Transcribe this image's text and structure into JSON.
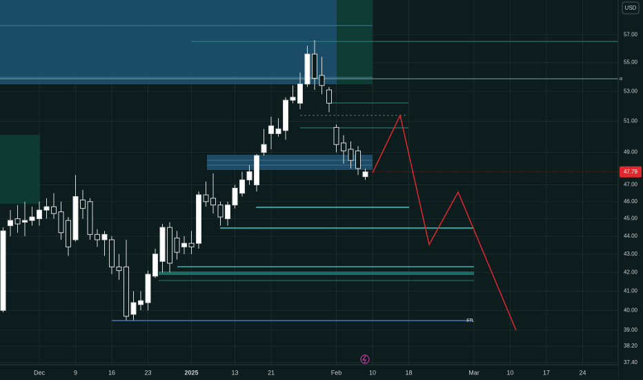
{
  "chart_data": {
    "type": "candlestick",
    "currency": "USD",
    "yscale": "log",
    "grid": true,
    "up_color": "#ffffff",
    "down_color": "#0d1c1c",
    "wick_color": "#d8dcdc",
    "last_price_color": "#e0282e",
    "ylim": [
      37.3,
      59.6
    ],
    "yticks": [
      {
        "value": 57,
        "label": "57.00"
      },
      {
        "value": 55,
        "label": "55.00"
      },
      {
        "value": 53,
        "label": "53.00"
      },
      {
        "value": 51,
        "label": "51.00"
      },
      {
        "value": 49,
        "label": "49.00"
      },
      {
        "value": 47,
        "label": "47.00"
      },
      {
        "value": 46,
        "label": "46.00"
      },
      {
        "value": 45,
        "label": "45.00"
      },
      {
        "value": 44,
        "label": "44.00"
      },
      {
        "value": 43,
        "label": "43.00"
      },
      {
        "value": 42,
        "label": "42.00"
      },
      {
        "value": 41,
        "label": "41.00"
      },
      {
        "value": 40,
        "label": "40.00"
      },
      {
        "value": 39,
        "label": "39.00"
      },
      {
        "value": 38.2,
        "label": "38.20"
      },
      {
        "value": 37.4,
        "label": "37.40"
      }
    ],
    "xlim": [
      -0.43,
      84.81
    ],
    "xticks": [
      {
        "value": 5,
        "label": "Dec"
      },
      {
        "value": 10,
        "label": "9"
      },
      {
        "value": 15,
        "label": "16"
      },
      {
        "value": 20,
        "label": "23"
      },
      {
        "value": 26,
        "label": "2025"
      },
      {
        "value": 32,
        "label": "13"
      },
      {
        "value": 37,
        "label": "21"
      },
      {
        "value": 46,
        "label": "Feb"
      },
      {
        "value": 51,
        "label": "10"
      },
      {
        "value": 56,
        "label": "18"
      },
      {
        "value": 65,
        "label": "Mar"
      },
      {
        "value": 70,
        "label": "10"
      },
      {
        "value": 75,
        "label": "17"
      },
      {
        "value": 80,
        "label": "24"
      }
    ],
    "open": [
      40.0,
      44.6,
      45.0,
      44.8,
      44.9,
      45.0,
      45.5,
      45.7,
      45.4,
      44.9,
      43.8,
      46.1,
      46.0,
      44.1,
      43.8,
      43.8,
      42.3,
      42.3,
      39.8,
      40.3,
      40.4,
      41.8,
      42.6,
      44.5,
      43.9,
      43.4,
      43.6,
      43.6,
      46.4,
      46.2,
      45.8,
      45.0,
      45.8,
      46.5,
      47.3,
      47.0,
      49.0,
      50.2,
      50.2,
      50.4,
      52.4,
      52.2,
      53.5,
      55.6,
      54.1,
      53.1,
      50.6,
      49.6,
      49.2,
      49.1,
      47.5
    ],
    "high": [
      44.5,
      45.5,
      45.8,
      46.0,
      45.7,
      46.0,
      46.2,
      46.5,
      46.0,
      45.1,
      47.6,
      46.7,
      46.2,
      44.4,
      44.3,
      44.0,
      43.0,
      43.8,
      41.0,
      41.0,
      42.1,
      43.3,
      44.7,
      44.8,
      44.3,
      44.0,
      44.3,
      46.6,
      47.2,
      47.7,
      46.0,
      46.0,
      47.0,
      47.8,
      48.2,
      48.9,
      50.5,
      51.3,
      51.2,
      52.6,
      53.4,
      54.3,
      56.2,
      56.6,
      55.4,
      53.3,
      50.8,
      50.1,
      49.7,
      49.4,
      48.0
    ],
    "low": [
      39.9,
      44.0,
      44.2,
      44.0,
      44.6,
      44.6,
      45.0,
      45.0,
      43.8,
      42.9,
      43.7,
      45.0,
      43.8,
      43.4,
      42.9,
      41.9,
      41.6,
      39.5,
      39.5,
      40.0,
      40.0,
      41.7,
      42.0,
      42.0,
      42.7,
      43.0,
      43.0,
      43.3,
      45.7,
      45.3,
      44.6,
      44.6,
      45.6,
      46.3,
      47.0,
      46.6,
      48.8,
      49.2,
      50.0,
      49.8,
      52.2,
      51.8,
      53.3,
      53.1,
      52.8,
      51.6,
      49.0,
      48.3,
      48.0,
      47.6,
      47.3
    ],
    "close": [
      44.3,
      44.9,
      44.7,
      44.9,
      45.1,
      45.5,
      45.7,
      45.3,
      44.2,
      43.4,
      46.3,
      45.6,
      44.1,
      43.8,
      44.1,
      42.3,
      42.1,
      39.7,
      40.4,
      40.5,
      41.9,
      43.0,
      44.5,
      42.5,
      43.1,
      43.6,
      43.4,
      46.4,
      46.0,
      45.8,
      45.1,
      45.8,
      46.8,
      47.3,
      47.8,
      48.8,
      49.5,
      50.7,
      50.5,
      52.4,
      52.6,
      53.5,
      55.6,
      53.9,
      53.4,
      52.2,
      49.5,
      49.1,
      48.5,
      48.0,
      47.79
    ],
    "last_price": 47.79,
    "annotation": "STL"
  }
}
